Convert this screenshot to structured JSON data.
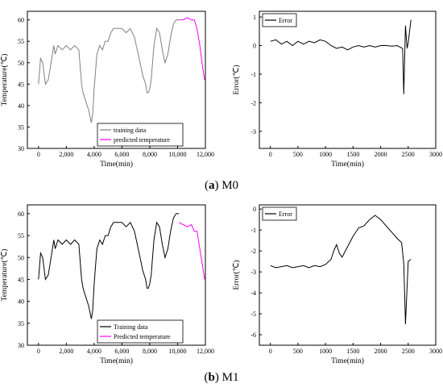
{
  "figure": {
    "caption_a": {
      "letter": "a",
      "text": "M0"
    },
    "caption_b": {
      "letter": "b",
      "text": "M1"
    }
  },
  "chart_data": [
    {
      "id": "a-temp",
      "type": "line",
      "xlabel": "Time(min)",
      "ylabel": "Temperature(℃)",
      "xlim": [
        -800,
        12000
      ],
      "ylim": [
        30,
        62
      ],
      "xticks": [
        0,
        2000,
        4000,
        6000,
        8000,
        10000,
        12000
      ],
      "xtick_labels": [
        "0",
        "2,000",
        "4,000",
        "6,000",
        "8,000",
        "10,000",
        "12,000"
      ],
      "yticks": [
        30,
        35,
        40,
        45,
        50,
        55,
        60
      ],
      "ytick_labels": [
        "30",
        "35",
        "40",
        "45",
        "50",
        "55",
        "60"
      ],
      "legend_position": "bottom-right",
      "series": [
        {
          "name": "training data",
          "color": "#808080",
          "x": [
            0,
            150,
            300,
            500,
            700,
            900,
            1100,
            1200,
            1400,
            1700,
            2000,
            2300,
            2600,
            2900,
            3100,
            3200,
            3400,
            3600,
            3800,
            3900,
            4000,
            4100,
            4200,
            4400,
            4600,
            4800,
            5000,
            5200,
            5400,
            5600,
            5800,
            6000,
            6300,
            6600,
            6900,
            7100,
            7300,
            7500,
            7700,
            7800,
            7900,
            8000,
            8100,
            8200,
            8300,
            8500,
            8700,
            8900,
            9100,
            9300,
            9500,
            9700,
            9900,
            10100
          ],
          "y": [
            45,
            51,
            50,
            45,
            46,
            50,
            54,
            52,
            54,
            53,
            54,
            53,
            54,
            53,
            45,
            43,
            41,
            39,
            36,
            38,
            44,
            48,
            52,
            54,
            53,
            55,
            55,
            57,
            58,
            58,
            58,
            58,
            57,
            58,
            56,
            53,
            50,
            47,
            45,
            43,
            43,
            44,
            46,
            50,
            54,
            58,
            57,
            53,
            50,
            52,
            56,
            59,
            60,
            60
          ]
        },
        {
          "name": "predicted temperature",
          "color": "#ff00ff",
          "x": [
            10100,
            10400,
            10700,
            11000,
            11200,
            11400,
            11600,
            11800,
            11950
          ],
          "y": [
            60,
            60,
            60.5,
            60,
            60,
            58,
            54,
            49,
            46
          ]
        }
      ]
    },
    {
      "id": "a-error",
      "type": "line",
      "xlabel": "Time(min)",
      "ylabel": "Error(℃)",
      "xlim": [
        -200,
        3000
      ],
      "ylim": [
        -3.6,
        1.2
      ],
      "xticks": [
        0,
        500,
        1000,
        1500,
        2000,
        2500,
        3000
      ],
      "xtick_labels": [
        "0",
        "500",
        "1000",
        "1500",
        "2000",
        "2500",
        "3000"
      ],
      "yticks": [
        -3,
        -2,
        -1,
        0,
        1
      ],
      "ytick_labels": [
        "-3",
        "-2",
        "-1",
        "0",
        "1"
      ],
      "legend_position": "top-left",
      "series": [
        {
          "name": "Error",
          "color": "#000000",
          "x": [
            0,
            100,
            200,
            300,
            400,
            500,
            600,
            700,
            800,
            900,
            1000,
            1100,
            1200,
            1300,
            1400,
            1500,
            1600,
            1700,
            1800,
            1900,
            2000,
            2100,
            2200,
            2300,
            2400,
            2420,
            2450,
            2480,
            2500,
            2550
          ],
          "y": [
            0.15,
            0.2,
            0.05,
            0.15,
            0.0,
            0.15,
            0.05,
            0.15,
            0.1,
            0.2,
            0.15,
            0.0,
            -0.1,
            -0.05,
            -0.15,
            -0.05,
            0.0,
            -0.05,
            0.0,
            -0.05,
            0.0,
            0.0,
            -0.02,
            0.0,
            -0.1,
            -1.7,
            0.7,
            -0.1,
            0.1,
            0.9
          ]
        }
      ]
    },
    {
      "id": "b-temp",
      "type": "line",
      "xlabel": "Time(min)",
      "ylabel": "Temperature(℃)",
      "xlim": [
        -800,
        12000
      ],
      "ylim": [
        30,
        62
      ],
      "xticks": [
        0,
        2000,
        4000,
        6000,
        8000,
        10000,
        12000
      ],
      "xtick_labels": [
        "0",
        "2,000",
        "4,000",
        "6,000",
        "8,000",
        "10,000",
        "12,000"
      ],
      "yticks": [
        30,
        35,
        40,
        45,
        50,
        55,
        60
      ],
      "ytick_labels": [
        "30",
        "35",
        "40",
        "45",
        "50",
        "55",
        "60"
      ],
      "legend_position": "bottom-right",
      "series": [
        {
          "name": "Training data",
          "color": "#000000",
          "x": [
            0,
            150,
            300,
            500,
            700,
            900,
            1100,
            1200,
            1400,
            1700,
            2000,
            2300,
            2600,
            2900,
            3100,
            3200,
            3400,
            3600,
            3800,
            3900,
            4000,
            4100,
            4200,
            4400,
            4600,
            4800,
            5000,
            5200,
            5400,
            5600,
            5800,
            6000,
            6300,
            6600,
            6900,
            7100,
            7300,
            7500,
            7700,
            7800,
            7900,
            8000,
            8100,
            8200,
            8300,
            8500,
            8700,
            8900,
            9100,
            9300,
            9500,
            9700,
            9900,
            10100
          ],
          "y": [
            45,
            51,
            50,
            45,
            46,
            50,
            54,
            52,
            54,
            53,
            54,
            53,
            54,
            53,
            45,
            43,
            41,
            39,
            36,
            38,
            44,
            48,
            52,
            54,
            53,
            55,
            55,
            57,
            58,
            58,
            58,
            58,
            57,
            58,
            56,
            53,
            50,
            47,
            45,
            43,
            43,
            44,
            46,
            50,
            54,
            58,
            57,
            53,
            50,
            52,
            56,
            59,
            60,
            60
          ]
        },
        {
          "name": "Predicted temperature",
          "color": "#ff00ff",
          "x": [
            10100,
            10400,
            10700,
            11000,
            11200,
            11400,
            11600,
            11800,
            11950
          ],
          "y": [
            58,
            57.5,
            57,
            57.5,
            56,
            56,
            52,
            48,
            45
          ]
        }
      ]
    },
    {
      "id": "b-error",
      "type": "line",
      "xlabel": "Time(min)",
      "ylabel": "Error(℃)",
      "xlim": [
        -200,
        3000
      ],
      "ylim": [
        -6.5,
        0.2
      ],
      "xticks": [
        0,
        500,
        1000,
        1500,
        2000,
        2500,
        3000
      ],
      "xtick_labels": [
        "0",
        "500",
        "1000",
        "1500",
        "2000",
        "2500",
        "3000"
      ],
      "yticks": [
        -6,
        -5,
        -4,
        -3,
        -2,
        -1,
        0
      ],
      "ytick_labels": [
        "-6",
        "-5",
        "-4",
        "-3",
        "-2",
        "-1",
        "0"
      ],
      "legend_position": "top-left",
      "series": [
        {
          "name": "Error",
          "color": "#000000",
          "x": [
            0,
            100,
            200,
            300,
            400,
            500,
            600,
            700,
            800,
            900,
            1000,
            1100,
            1150,
            1200,
            1250,
            1300,
            1400,
            1500,
            1600,
            1700,
            1800,
            1900,
            2000,
            2100,
            2200,
            2300,
            2380,
            2420,
            2450,
            2500,
            2550
          ],
          "y": [
            -2.7,
            -2.8,
            -2.75,
            -2.7,
            -2.8,
            -2.75,
            -2.7,
            -2.8,
            -2.7,
            -2.75,
            -2.65,
            -2.4,
            -2.0,
            -1.7,
            -2.1,
            -2.3,
            -1.8,
            -1.3,
            -0.9,
            -0.8,
            -0.5,
            -0.3,
            -0.5,
            -0.8,
            -1.1,
            -1.4,
            -1.6,
            -2.6,
            -5.5,
            -2.5,
            -2.4
          ]
        }
      ]
    }
  ]
}
